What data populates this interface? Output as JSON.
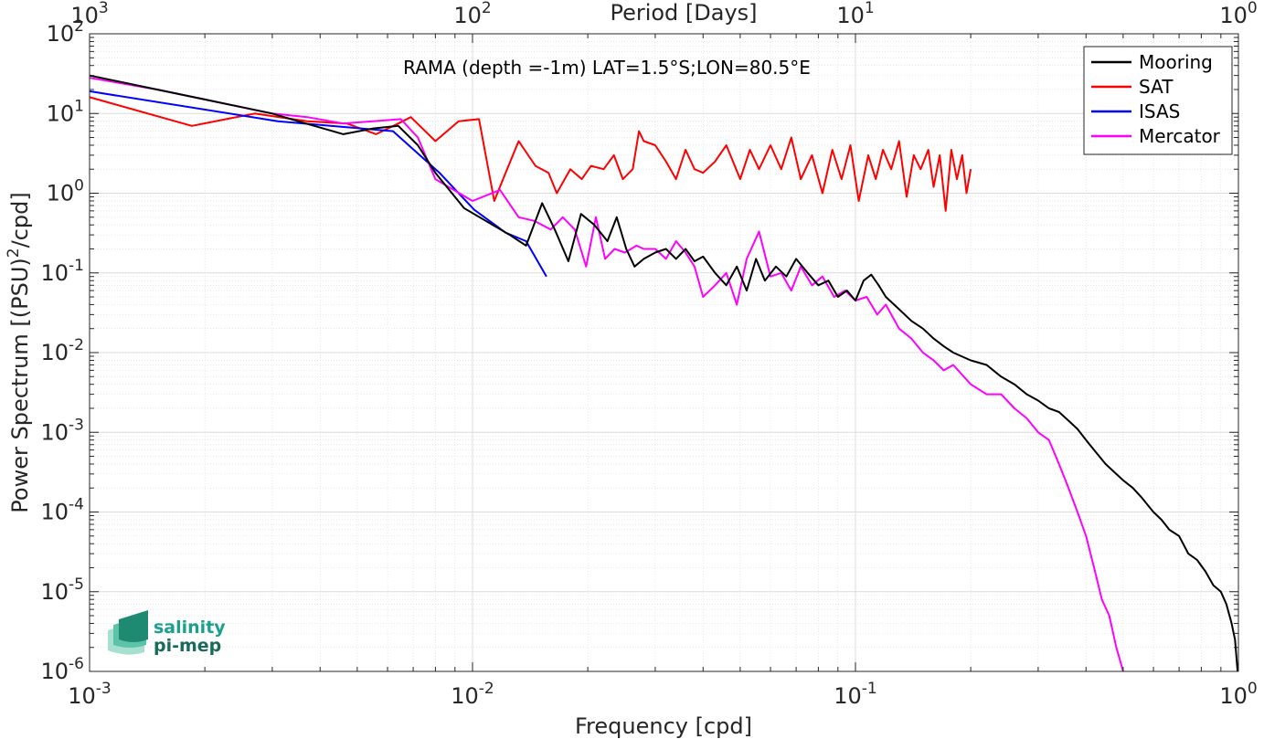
{
  "chart_data": {
    "type": "line",
    "title": "",
    "annotation": "RAMA (depth =-1m) LAT=1.5°S;LON=80.5°E",
    "xlabel": "Frequency [cpd]",
    "ylabel_parts": [
      "Power Spectrum [(PSU)",
      "2",
      "/cpd]"
    ],
    "top_xlabel": "Period [Days]",
    "x_scale": "log",
    "y_scale": "log",
    "xlim": [
      0.001,
      1
    ],
    "ylim": [
      1e-06,
      100
    ],
    "grid": true,
    "legend_position": "top-right",
    "x_ticks": [
      {
        "base": "10",
        "exp": "-3"
      },
      {
        "base": "10",
        "exp": "-2"
      },
      {
        "base": "10",
        "exp": "-1"
      },
      {
        "base": "10",
        "exp": "0"
      }
    ],
    "top_ticks": [
      {
        "base": "10",
        "exp": "3"
      },
      {
        "base": "10",
        "exp": "2"
      },
      {
        "base": "10",
        "exp": "1"
      },
      {
        "base": "10",
        "exp": "0"
      }
    ],
    "y_ticks": [
      {
        "base": "10",
        "exp": "-6"
      },
      {
        "base": "10",
        "exp": "-5"
      },
      {
        "base": "10",
        "exp": "-4"
      },
      {
        "base": "10",
        "exp": "-3"
      },
      {
        "base": "10",
        "exp": "-2"
      },
      {
        "base": "10",
        "exp": "-1"
      },
      {
        "base": "10",
        "exp": "0"
      },
      {
        "base": "10",
        "exp": "1"
      },
      {
        "base": "10",
        "exp": "2"
      }
    ],
    "series": [
      {
        "name": "Mooring",
        "color": "#000000",
        "x": [
          0.001,
          0.0015,
          0.002,
          0.003,
          0.0035,
          0.0046,
          0.0055,
          0.0064,
          0.0072,
          0.008,
          0.0095,
          0.0115,
          0.0125,
          0.0138,
          0.0152,
          0.0164,
          0.0178,
          0.0192,
          0.0208,
          0.0225,
          0.0238,
          0.0252,
          0.0265,
          0.028,
          0.03,
          0.032,
          0.034,
          0.036,
          0.038,
          0.04,
          0.043,
          0.046,
          0.049,
          0.052,
          0.055,
          0.058,
          0.062,
          0.066,
          0.07,
          0.075,
          0.08,
          0.085,
          0.09,
          0.095,
          0.1,
          0.105,
          0.11,
          0.115,
          0.12,
          0.13,
          0.14,
          0.15,
          0.16,
          0.17,
          0.18,
          0.2,
          0.22,
          0.24,
          0.26,
          0.28,
          0.3,
          0.32,
          0.34,
          0.36,
          0.38,
          0.4,
          0.42,
          0.45,
          0.48,
          0.5,
          0.53,
          0.56,
          0.6,
          0.63,
          0.66,
          0.7,
          0.74,
          0.78,
          0.82,
          0.86,
          0.9,
          0.93,
          0.96,
          0.98,
          0.995
        ],
        "y": [
          30,
          20,
          15,
          10,
          8,
          5.5,
          6.5,
          7,
          4,
          1.8,
          0.65,
          0.38,
          0.3,
          0.22,
          0.75,
          0.35,
          0.14,
          0.55,
          0.4,
          0.25,
          0.5,
          0.2,
          0.12,
          0.15,
          0.18,
          0.2,
          0.15,
          0.2,
          0.14,
          0.16,
          0.1,
          0.07,
          0.12,
          0.06,
          0.15,
          0.08,
          0.12,
          0.09,
          0.15,
          0.1,
          0.07,
          0.08,
          0.05,
          0.06,
          0.045,
          0.08,
          0.095,
          0.07,
          0.05,
          0.035,
          0.025,
          0.02,
          0.015,
          0.012,
          0.01,
          0.008,
          0.007,
          0.005,
          0.004,
          0.003,
          0.0025,
          0.002,
          0.0018,
          0.0014,
          0.0011,
          0.0008,
          0.0006,
          0.0004,
          0.0003,
          0.00025,
          0.0002,
          0.00015,
          0.0001,
          8e-05,
          6e-05,
          5e-05,
          3e-05,
          2.5e-05,
          1.8e-05,
          1.2e-05,
          1e-05,
          7e-06,
          4e-06,
          2.5e-06,
          1e-06
        ]
      },
      {
        "name": "SAT",
        "color": "#ff0000",
        "x": [
          0.001,
          0.00185,
          0.0027,
          0.0037,
          0.0047,
          0.0056,
          0.0064,
          0.0069,
          0.008,
          0.0092,
          0.0104,
          0.0114,
          0.0122,
          0.0132,
          0.0146,
          0.0158,
          0.0166,
          0.018,
          0.0193,
          0.0204,
          0.022,
          0.0234,
          0.0247,
          0.0262,
          0.0272,
          0.028,
          0.03,
          0.032,
          0.034,
          0.036,
          0.038,
          0.04,
          0.043,
          0.046,
          0.05,
          0.053,
          0.056,
          0.06,
          0.064,
          0.068,
          0.072,
          0.077,
          0.082,
          0.087,
          0.092,
          0.097,
          0.102,
          0.108,
          0.113,
          0.118,
          0.124,
          0.13,
          0.136,
          0.142,
          0.148,
          0.155,
          0.16,
          0.166,
          0.172,
          0.178,
          0.184,
          0.19,
          0.195,
          0.2
        ],
        "y": [
          16,
          7,
          10,
          8,
          7.5,
          5.5,
          7.5,
          9,
          4.5,
          8,
          8.5,
          0.8,
          1.8,
          4.5,
          2.2,
          1.8,
          1.0,
          2.0,
          1.5,
          2.2,
          2.0,
          3.0,
          1.5,
          2.0,
          6.0,
          4.5,
          4.0,
          2.5,
          1.5,
          3.5,
          2.0,
          1.8,
          2.5,
          4.0,
          1.5,
          3.5,
          2.0,
          4.0,
          2.0,
          5.0,
          1.5,
          3.0,
          1.0,
          3.5,
          1.5,
          4.0,
          0.8,
          3.0,
          1.5,
          3.5,
          2.0,
          4.5,
          0.9,
          3.0,
          2.0,
          3.5,
          1.2,
          3.0,
          0.6,
          3.5,
          1.5,
          3.0,
          1.0,
          2.0
        ]
      },
      {
        "name": "ISAS",
        "color": "#0000ff",
        "x": [
          0.001,
          0.0031,
          0.0062,
          0.0082,
          0.0101,
          0.0122,
          0.0138,
          0.0156
        ],
        "y": [
          19,
          8,
          6,
          1.8,
          0.62,
          0.32,
          0.25,
          0.09
        ]
      },
      {
        "name": "Mercator",
        "color": "#ff00ff",
        "x": [
          0.001,
          0.0015,
          0.002,
          0.003,
          0.0037,
          0.0046,
          0.0055,
          0.0065,
          0.0072,
          0.008,
          0.01,
          0.0118,
          0.0132,
          0.0145,
          0.016,
          0.0172,
          0.0185,
          0.0198,
          0.021,
          0.0222,
          0.0235,
          0.025,
          0.0268,
          0.028,
          0.03,
          0.032,
          0.034,
          0.036,
          0.038,
          0.04,
          0.043,
          0.046,
          0.049,
          0.052,
          0.056,
          0.06,
          0.064,
          0.068,
          0.072,
          0.077,
          0.082,
          0.088,
          0.094,
          0.1,
          0.107,
          0.114,
          0.12,
          0.13,
          0.14,
          0.15,
          0.16,
          0.17,
          0.18,
          0.2,
          0.22,
          0.24,
          0.26,
          0.28,
          0.3,
          0.32,
          0.34,
          0.36,
          0.38,
          0.4,
          0.42,
          0.44,
          0.46,
          0.48,
          0.5
        ],
        "y": [
          28,
          20,
          15,
          10,
          9,
          7.5,
          8,
          8.5,
          5,
          1.5,
          0.8,
          1.1,
          0.5,
          0.45,
          0.35,
          0.5,
          0.35,
          0.12,
          0.5,
          0.15,
          0.2,
          0.18,
          0.22,
          0.2,
          0.2,
          0.15,
          0.25,
          0.18,
          0.12,
          0.05,
          0.07,
          0.1,
          0.04,
          0.15,
          0.33,
          0.09,
          0.1,
          0.06,
          0.12,
          0.07,
          0.09,
          0.05,
          0.06,
          0.045,
          0.05,
          0.03,
          0.04,
          0.02,
          0.015,
          0.01,
          0.008,
          0.006,
          0.007,
          0.004,
          0.003,
          0.003,
          0.002,
          0.0015,
          0.001,
          0.0008,
          0.0004,
          0.0002,
          0.0001,
          5e-05,
          2e-05,
          8e-06,
          5e-06,
          2e-06,
          1e-06
        ]
      }
    ]
  },
  "logo": {
    "line1": "salinity",
    "line2": "pi-mep",
    "color1": "#1aa08c",
    "color2": "#196a5a"
  }
}
